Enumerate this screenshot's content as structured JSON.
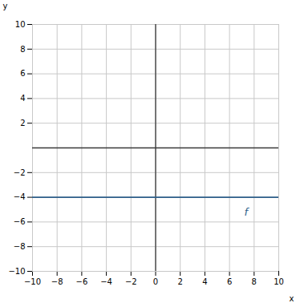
{
  "chart_data": {
    "type": "line",
    "x": [
      -10,
      10
    ],
    "series": [
      {
        "color": "#2e5f8a",
        "values": [
          -4,
          -4
        ]
      }
    ],
    "xlabel": "x",
    "ylabel": "y",
    "xlim": [
      -10,
      10
    ],
    "ylim": [
      -10,
      10
    ],
    "xticks": [
      -10,
      -8,
      -6,
      -4,
      -2,
      0,
      2,
      4,
      6,
      8,
      10
    ],
    "yticks": [
      -10,
      -8,
      -6,
      -4,
      -2,
      2,
      4,
      6,
      8,
      10
    ],
    "grid": true,
    "annotations": [
      {
        "text": "f",
        "x": 7.2,
        "y": -4.9,
        "color": "#2e5f8a"
      }
    ]
  }
}
